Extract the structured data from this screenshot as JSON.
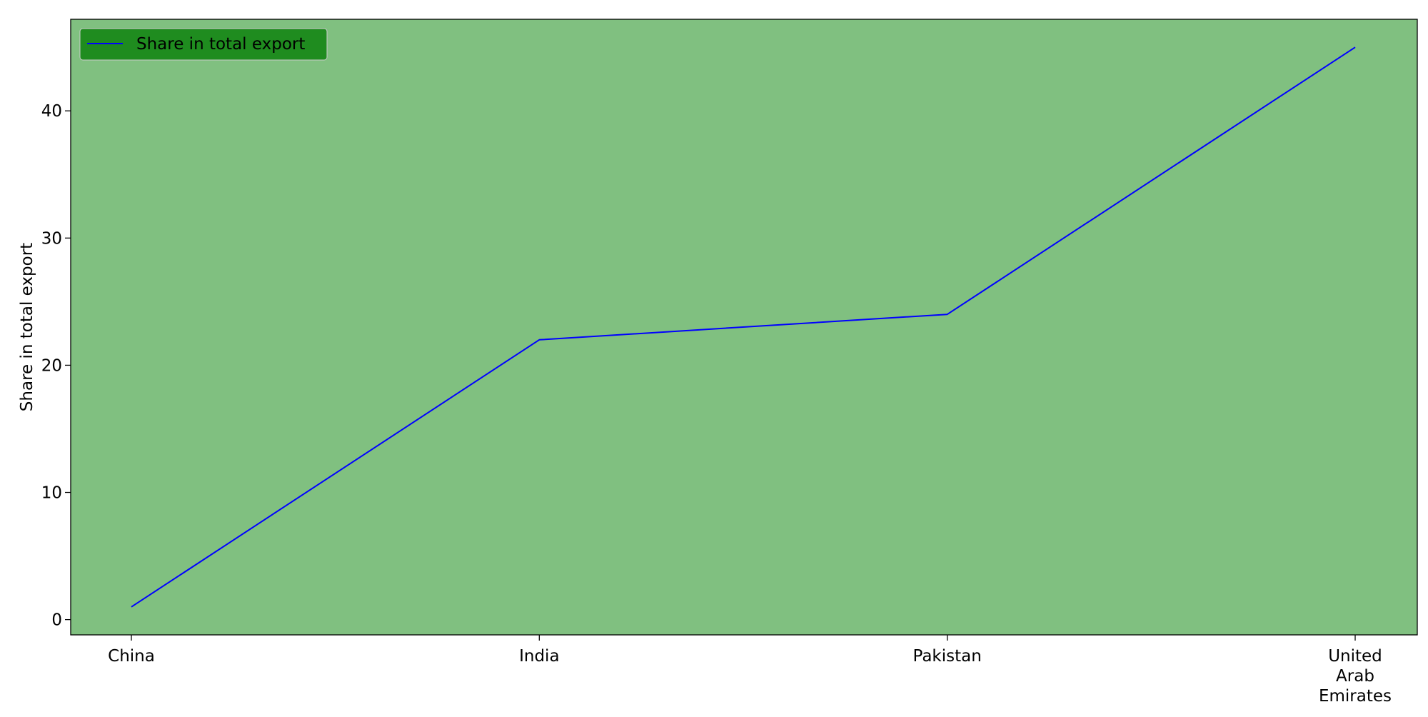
{
  "chart_data": {
    "type": "line",
    "categories": [
      [
        "China"
      ],
      [
        "India"
      ],
      [
        "Pakistan"
      ],
      [
        "United",
        "Arab",
        "Emirates"
      ]
    ],
    "series": [
      {
        "name": "Share in total export",
        "values": [
          1,
          22,
          24,
          45
        ],
        "color": "#0000ff"
      }
    ],
    "ylabel": "Share in total export",
    "xlabel": "",
    "ylim": [
      -1.2,
      47.2
    ],
    "yticks": [
      0,
      10,
      20,
      30,
      40
    ],
    "grid": false,
    "legend_position": "top-left",
    "colors": {
      "plot_background": "#80c080",
      "legend_background": "#1f8c1f",
      "axis_frame": "#000000",
      "line": "#0000ff"
    }
  }
}
